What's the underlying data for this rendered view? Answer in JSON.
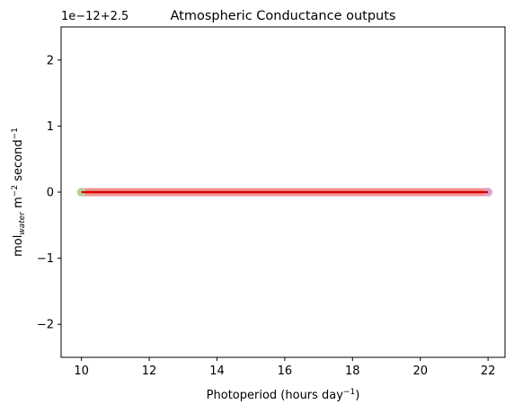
{
  "chart_data": {
    "type": "line",
    "title": "Atmospheric Conductance outputs",
    "xlabel": "Photoperiod (hours day",
    "xlabel_sup": "−1",
    "xlabel_suffix": ")",
    "ylabel": "mol",
    "ylabel_sub": "water",
    "ylabel_mid": " m",
    "ylabel_sup1": "−2",
    "ylabel_mid2": " second",
    "ylabel_sup2": "−1",
    "y_offset_text": "1e−12+2.5",
    "xlim": [
      9.4,
      22.5
    ],
    "ylim": [
      -2.5,
      2.5
    ],
    "x_ticks": [
      10,
      12,
      14,
      16,
      18,
      20,
      22
    ],
    "x_tick_labels": [
      "10",
      "12",
      "14",
      "16",
      "18",
      "20",
      "22"
    ],
    "y_ticks": [
      -2,
      -1,
      0,
      1,
      2
    ],
    "y_tick_labels": [
      "−2",
      "−1",
      "0",
      "1",
      "2"
    ],
    "grid": false,
    "legend": "none",
    "series": [
      {
        "x": [
          10,
          10.5,
          11,
          11.5,
          12,
          12.5,
          13,
          13.5,
          14,
          14.5,
          15,
          15.5,
          16,
          16.5,
          17,
          17.5,
          18,
          18.5,
          19,
          19.5,
          20,
          20.5,
          21,
          21.5,
          22
        ],
        "y": [
          0,
          0,
          0,
          0,
          0,
          0,
          0,
          0,
          0,
          0,
          0,
          0,
          0,
          0,
          0,
          0,
          0,
          0,
          0,
          0,
          0,
          0,
          0,
          0,
          0
        ],
        "color": "#f08c8c",
        "style": "thick-band"
      },
      {
        "x": [
          10,
          10.5,
          11,
          11.5,
          12,
          12.5,
          13,
          13.5,
          14,
          14.5,
          15,
          15.5,
          16,
          16.5,
          17,
          17.5,
          18,
          18.5,
          19,
          19.5,
          20,
          20.5,
          21,
          21.5,
          22
        ],
        "y": [
          0,
          0,
          0,
          0,
          0,
          0,
          0,
          0,
          0,
          0,
          0,
          0,
          0,
          0,
          0,
          0,
          0,
          0,
          0,
          0,
          0,
          0,
          0,
          0,
          0
        ],
        "color": "#d80000",
        "style": "line"
      }
    ],
    "end_markers": [
      {
        "x": 10,
        "y": 0,
        "color": "#a8dca0"
      },
      {
        "x": 22,
        "y": 0,
        "color": "#d8a8d8"
      }
    ]
  }
}
